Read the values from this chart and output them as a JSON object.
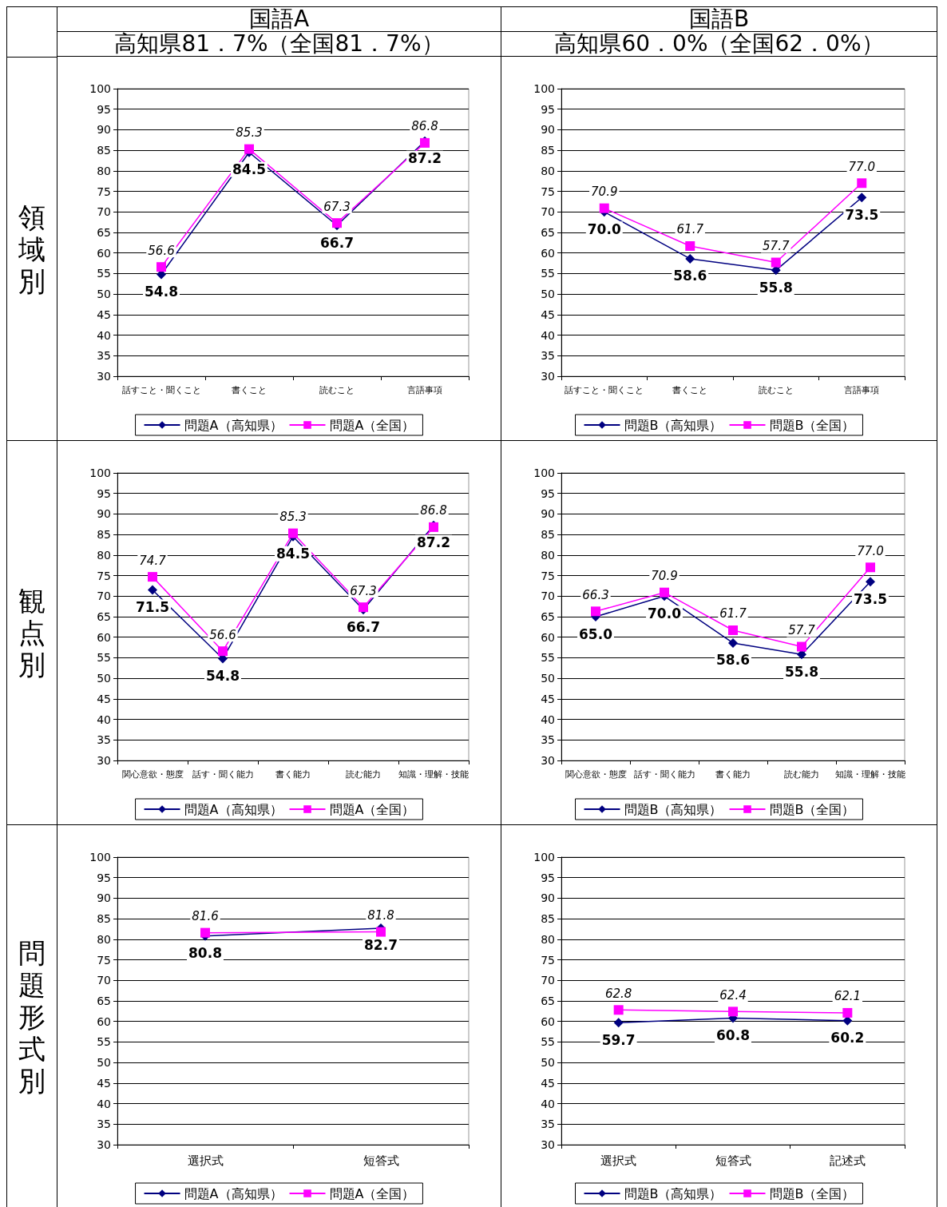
{
  "chart_data": [
    {
      "type": "line",
      "title": "国語A",
      "subtitle": "高知県81．7%（全国81．7%）",
      "ylabel": "領域別",
      "categories": [
        "話すこと・聞くこと",
        "書くこと",
        "読むこと",
        "言語事項"
      ],
      "ylim": [
        30,
        100
      ],
      "yticks": [
        30,
        35,
        40,
        45,
        50,
        55,
        60,
        65,
        70,
        75,
        80,
        85,
        90,
        95,
        100
      ],
      "grid": "y",
      "legend": "bottom",
      "line_style": "solid",
      "series": [
        {
          "name": "問題A（高知県）",
          "color": "#000080",
          "marker": "diamond",
          "values": [
            54.8,
            84.5,
            66.7,
            87.2
          ],
          "value_labels": [
            "54.8",
            "84.5",
            "66.7",
            "87.2"
          ]
        },
        {
          "name": "問題A（全国）",
          "color": "#ff00ff",
          "marker": "square",
          "values": [
            56.6,
            85.3,
            67.3,
            86.8
          ],
          "value_labels": [
            "56.6",
            "85.3",
            "67.3",
            "86.8"
          ]
        }
      ]
    },
    {
      "type": "line",
      "title": "国語B",
      "subtitle": "高知県60．0%（全国62．0%）",
      "categories": [
        "話すこと・聞くこと",
        "書くこと",
        "読むこと",
        "言語事項"
      ],
      "ylim": [
        30,
        100
      ],
      "yticks": [
        30,
        35,
        40,
        45,
        50,
        55,
        60,
        65,
        70,
        75,
        80,
        85,
        90,
        95,
        100
      ],
      "grid": "y",
      "legend": "bottom",
      "line_style": "solid",
      "series": [
        {
          "name": "問題B（高知県）",
          "color": "#000080",
          "marker": "diamond",
          "values": [
            70.0,
            58.6,
            55.8,
            73.5
          ],
          "value_labels": [
            "70.0",
            "58.6",
            "55.8",
            "73.5"
          ]
        },
        {
          "name": "問題B（全国）",
          "color": "#ff00ff",
          "marker": "square",
          "values": [
            70.9,
            61.7,
            57.7,
            77.0
          ],
          "value_labels": [
            "70.9",
            "61.7",
            "57.7",
            "77.0"
          ]
        }
      ]
    },
    {
      "type": "line",
      "ylabel": "観点別",
      "categories": [
        "関心意欲・態度",
        "話す・聞く能力",
        "書く能力",
        "読む能力",
        "知識・理解・技能"
      ],
      "ylim": [
        30,
        100
      ],
      "yticks": [
        30,
        35,
        40,
        45,
        50,
        55,
        60,
        65,
        70,
        75,
        80,
        85,
        90,
        95,
        100
      ],
      "grid": "y",
      "legend": "bottom",
      "line_style": "solid",
      "series": [
        {
          "name": "問題A（高知県）",
          "color": "#000080",
          "marker": "diamond",
          "values": [
            71.5,
            54.8,
            84.5,
            66.7,
            87.2
          ],
          "value_labels": [
            "71.5",
            "54.8",
            "84.5",
            "66.7",
            "87.2"
          ]
        },
        {
          "name": "問題A（全国）",
          "color": "#ff00ff",
          "marker": "square",
          "values": [
            74.7,
            56.6,
            85.3,
            67.3,
            86.8
          ],
          "value_labels": [
            "74.7",
            "56.6",
            "85.3",
            "67.3",
            "86.8"
          ]
        }
      ]
    },
    {
      "type": "line",
      "categories": [
        "関心意欲・態度",
        "話す・聞く能力",
        "書く能力",
        "読む能力",
        "知識・理解・技能"
      ],
      "ylim": [
        30,
        100
      ],
      "yticks": [
        30,
        35,
        40,
        45,
        50,
        55,
        60,
        65,
        70,
        75,
        80,
        85,
        90,
        95,
        100
      ],
      "grid": "y",
      "legend": "bottom",
      "line_style": "solid",
      "series": [
        {
          "name": "問題B（高知県）",
          "color": "#000080",
          "marker": "diamond",
          "values": [
            65.0,
            70.0,
            58.6,
            55.8,
            73.5
          ],
          "value_labels": [
            "65.0",
            "70.0",
            "58.6",
            "55.8",
            "73.5"
          ]
        },
        {
          "name": "問題B（全国）",
          "color": "#ff00ff",
          "marker": "square",
          "values": [
            66.3,
            70.9,
            61.7,
            57.7,
            77.0
          ],
          "value_labels": [
            "66.3",
            "70.9",
            "61.7",
            "57.7",
            "77.0"
          ]
        }
      ]
    },
    {
      "type": "line",
      "ylabel": "問題形式別",
      "categories": [
        "選択式",
        "短答式"
      ],
      "ylim": [
        30,
        100
      ],
      "yticks": [
        30,
        35,
        40,
        45,
        50,
        55,
        60,
        65,
        70,
        75,
        80,
        85,
        90,
        95,
        100
      ],
      "grid": "y",
      "legend": "bottom",
      "line_style": "solid",
      "series": [
        {
          "name": "問題A（高知県）",
          "color": "#000080",
          "marker": "diamond",
          "values": [
            80.8,
            82.7
          ],
          "value_labels": [
            "80.8",
            "82.7"
          ]
        },
        {
          "name": "問題A（全国）",
          "color": "#ff00ff",
          "marker": "square",
          "values": [
            81.6,
            81.8
          ],
          "value_labels": [
            "81.6",
            "81.8"
          ]
        }
      ]
    },
    {
      "type": "line",
      "categories": [
        "選択式",
        "短答式",
        "記述式"
      ],
      "ylim": [
        30,
        100
      ],
      "yticks": [
        30,
        35,
        40,
        45,
        50,
        55,
        60,
        65,
        70,
        75,
        80,
        85,
        90,
        95,
        100
      ],
      "grid": "y",
      "legend": "bottom",
      "line_style": "solid",
      "series": [
        {
          "name": "問題B（高知県）",
          "color": "#000080",
          "marker": "diamond",
          "values": [
            59.7,
            60.8,
            60.2
          ],
          "value_labels": [
            "59.7",
            "60.8",
            "60.2"
          ]
        },
        {
          "name": "問題B（全国）",
          "color": "#ff00ff",
          "marker": "square",
          "values": [
            62.8,
            62.4,
            62.1
          ],
          "value_labels": [
            "62.8",
            "62.4",
            "62.1"
          ]
        }
      ]
    }
  ]
}
